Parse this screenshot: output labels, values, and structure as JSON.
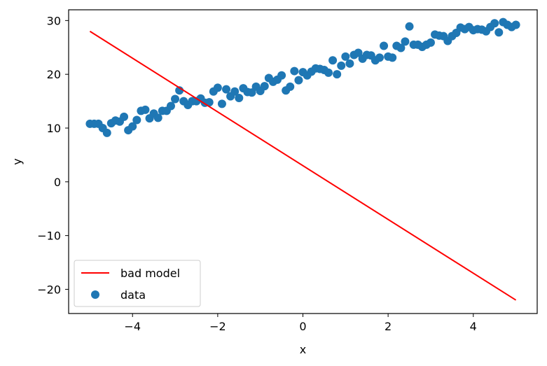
{
  "chart_data": {
    "type": "scatter",
    "xlabel": "x",
    "ylabel": "y",
    "xlim": [
      -5.5,
      5.5
    ],
    "ylim": [
      -24.5,
      32
    ],
    "xticks": [
      -4,
      -2,
      0,
      2,
      4
    ],
    "yticks": [
      -20,
      -10,
      0,
      10,
      20,
      30
    ],
    "grid": false,
    "legend_position": "lower-left",
    "colors": {
      "line": "#ff0000",
      "points": "#1f77b4"
    },
    "series": [
      {
        "name": "bad model",
        "kind": "line",
        "x": [
          -5,
          5
        ],
        "y": [
          28,
          -22
        ]
      },
      {
        "name": "data",
        "kind": "scatter",
        "x": [
          -5.0,
          -4.9,
          -4.8,
          -4.7,
          -4.6,
          -4.5,
          -4.4,
          -4.3,
          -4.2,
          -4.1,
          -4.0,
          -3.9,
          -3.8,
          -3.7,
          -3.6,
          -3.5,
          -3.4,
          -3.3,
          -3.2,
          -3.1,
          -3.0,
          -2.9,
          -2.8,
          -2.7,
          -2.6,
          -2.5,
          -2.4,
          -2.3,
          -2.2,
          -2.1,
          -2.0,
          -1.9,
          -1.8,
          -1.7,
          -1.6,
          -1.5,
          -1.4,
          -1.3,
          -1.2,
          -1.1,
          -1.0,
          -0.9,
          -0.8,
          -0.7,
          -0.6,
          -0.5,
          -0.4,
          -0.3,
          -0.2,
          -0.1,
          0.0,
          0.1,
          0.2,
          0.3,
          0.4,
          0.5,
          0.6,
          0.7,
          0.8,
          0.9,
          1.0,
          1.1,
          1.2,
          1.3,
          1.4,
          1.5,
          1.6,
          1.7,
          1.8,
          1.9,
          2.0,
          2.1,
          2.2,
          2.3,
          2.4,
          2.5,
          2.6,
          2.7,
          2.8,
          2.9,
          3.0,
          3.1,
          3.2,
          3.3,
          3.4,
          3.5,
          3.6,
          3.7,
          3.8,
          3.9,
          4.0,
          4.1,
          4.2,
          4.3,
          4.4,
          4.5,
          4.6,
          4.7,
          4.8,
          4.9,
          5.0
        ],
        "y": [
          10.8,
          10.8,
          10.8,
          10.0,
          9.1,
          10.9,
          11.4,
          11.2,
          12.1,
          9.6,
          10.3,
          11.5,
          13.2,
          13.4,
          11.8,
          12.7,
          11.9,
          13.2,
          13.2,
          14.1,
          15.4,
          17.0,
          15.0,
          14.3,
          15.0,
          15.0,
          15.5,
          14.7,
          14.8,
          16.8,
          17.5,
          14.5,
          17.2,
          15.9,
          16.8,
          15.6,
          17.4,
          16.7,
          16.6,
          17.7,
          16.9,
          17.8,
          19.3,
          18.6,
          19.0,
          19.8,
          17.0,
          17.7,
          20.6,
          18.9,
          20.4,
          19.8,
          20.5,
          21.1,
          21.0,
          20.8,
          20.3,
          22.6,
          20.0,
          21.6,
          23.3,
          22.0,
          23.6,
          24.0,
          22.9,
          23.6,
          23.5,
          22.6,
          23.1,
          25.3,
          23.3,
          23.1,
          25.3,
          24.9,
          26.1,
          28.9,
          25.5,
          25.5,
          25.1,
          25.5,
          25.9,
          27.4,
          27.2,
          27.1,
          26.2,
          27.1,
          27.7,
          28.7,
          28.4,
          28.8,
          28.2,
          28.4,
          28.3,
          28.0,
          28.8,
          29.5,
          27.8,
          29.7,
          29.2,
          28.8,
          29.2
        ]
      }
    ]
  }
}
